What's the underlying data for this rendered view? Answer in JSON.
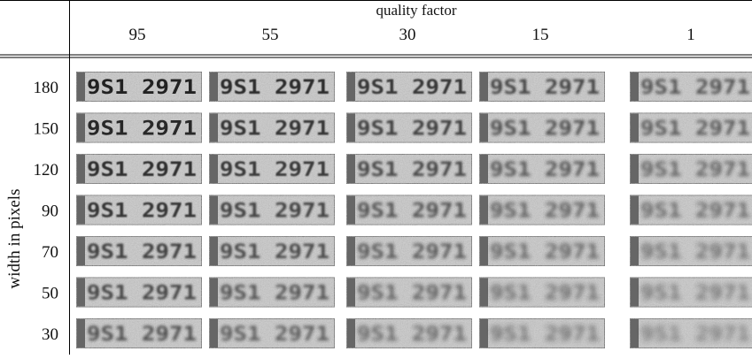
{
  "header": {
    "title": "quality factor",
    "columns": [
      "95",
      "55",
      "30",
      "15",
      "1"
    ]
  },
  "rows": {
    "label": "width in pixels",
    "values": [
      "180",
      "150",
      "120",
      "90",
      "70",
      "50",
      "30"
    ]
  },
  "plate_text": "9S1 2971"
}
